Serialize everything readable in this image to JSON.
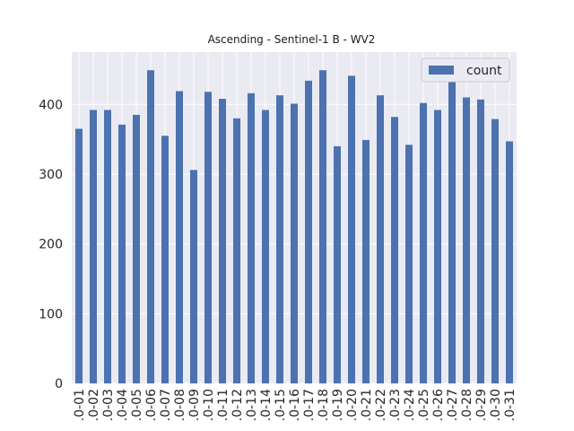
{
  "chart_data": {
    "type": "bar",
    "title": "Ascending - Sentinel-1 B - WV2",
    "xlabel": "",
    "ylabel": "",
    "ylim": [
      0,
      475
    ],
    "yticks": [
      0,
      100,
      200,
      300,
      400
    ],
    "grid": true,
    "legend_position": "top-right",
    "categories": [
      ".0-01",
      ".0-02",
      ".0-03",
      ".0-04",
      ".0-05",
      ".0-06",
      ".0-07",
      ".0-08",
      ".0-09",
      ".0-10",
      ".0-11",
      ".0-12",
      ".0-13",
      ".0-14",
      ".0-15",
      ".0-16",
      ".0-17",
      ".0-18",
      ".0-19",
      ".0-20",
      ".0-21",
      ".0-22",
      ".0-23",
      ".0-24",
      ".0-25",
      ".0-26",
      ".0-27",
      ".0-28",
      ".0-29",
      ".0-30",
      ".0-31"
    ],
    "series": [
      {
        "name": "count",
        "color": "#4c72b0",
        "values": [
          365,
          392,
          392,
          371,
          385,
          449,
          355,
          419,
          306,
          418,
          408,
          380,
          416,
          392,
          413,
          401,
          434,
          449,
          340,
          441,
          349,
          413,
          382,
          342,
          402,
          392,
          439,
          410,
          407,
          379,
          347
        ]
      }
    ]
  }
}
